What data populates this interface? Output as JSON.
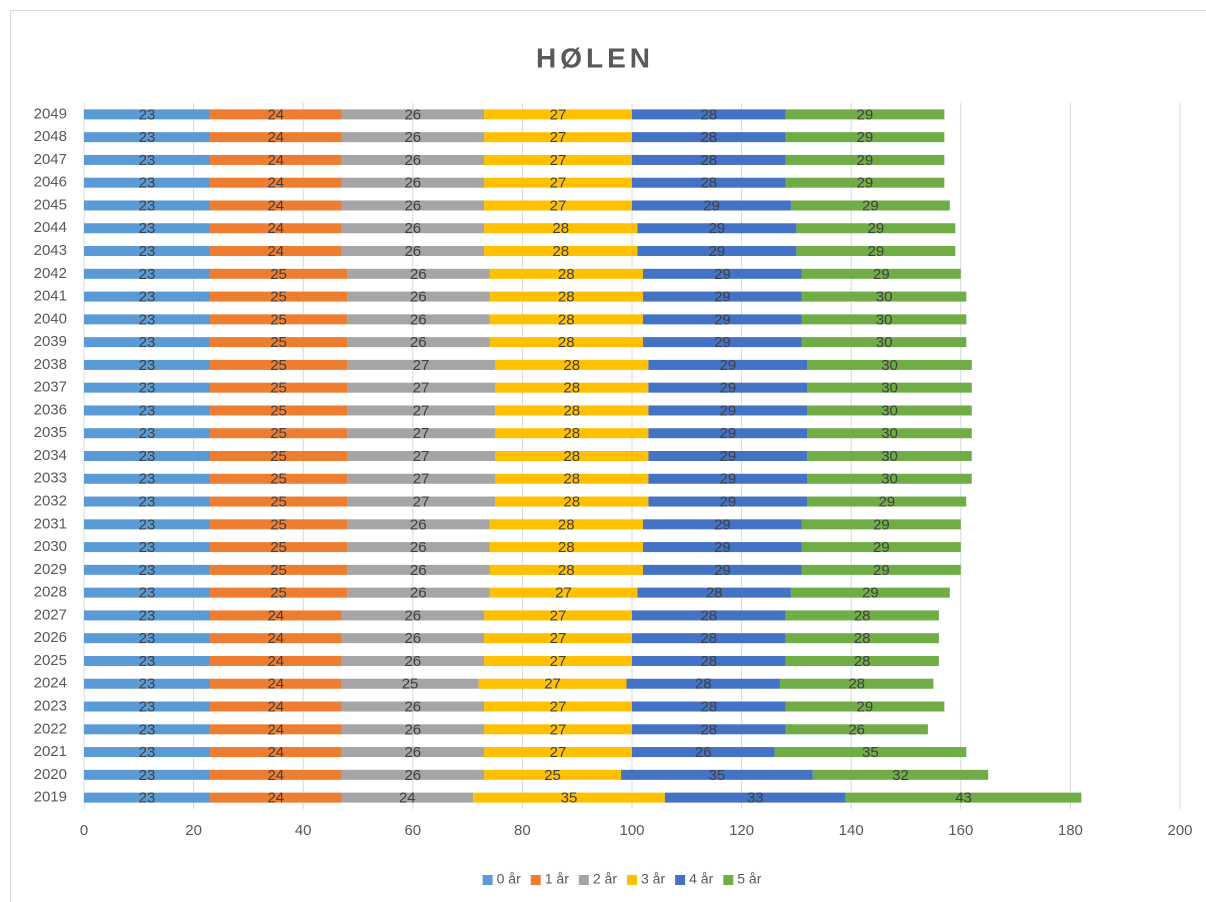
{
  "chart_data": {
    "type": "stacked_bar_horizontal",
    "title": "HØLEN",
    "categories": [
      "2019",
      "2020",
      "2021",
      "2022",
      "2023",
      "2024",
      "2025",
      "2026",
      "2027",
      "2028",
      "2029",
      "2030",
      "2031",
      "2032",
      "2033",
      "2034",
      "2035",
      "2036",
      "2037",
      "2038",
      "2039",
      "2040",
      "2041",
      "2042",
      "2043",
      "2044",
      "2045",
      "2046",
      "2047",
      "2048",
      "2049"
    ],
    "series": [
      {
        "name": "0 år",
        "color": "#5b9bd5",
        "values": [
          23,
          23,
          23,
          23,
          23,
          23,
          23,
          23,
          23,
          23,
          23,
          23,
          23,
          23,
          23,
          23,
          23,
          23,
          23,
          23,
          23,
          23,
          23,
          23,
          23,
          23,
          23,
          23,
          23,
          23,
          23
        ]
      },
      {
        "name": "1 år",
        "color": "#ed7d31",
        "values": [
          24,
          24,
          24,
          24,
          24,
          24,
          24,
          24,
          24,
          25,
          25,
          25,
          25,
          25,
          25,
          25,
          25,
          25,
          25,
          25,
          25,
          25,
          25,
          25,
          24,
          24,
          24,
          24,
          24,
          24,
          24
        ]
      },
      {
        "name": "2 år",
        "color": "#a5a5a5",
        "values": [
          24,
          26,
          26,
          26,
          26,
          25,
          26,
          26,
          26,
          26,
          26,
          26,
          26,
          27,
          27,
          27,
          27,
          27,
          27,
          27,
          26,
          26,
          26,
          26,
          26,
          26,
          26,
          26,
          26,
          26,
          26
        ]
      },
      {
        "name": "3 år",
        "color": "#ffc000",
        "values": [
          35,
          25,
          27,
          27,
          27,
          27,
          27,
          27,
          27,
          27,
          28,
          28,
          28,
          28,
          28,
          28,
          28,
          28,
          28,
          28,
          28,
          28,
          28,
          28,
          28,
          28,
          27,
          27,
          27,
          27,
          27
        ]
      },
      {
        "name": "4 år",
        "color": "#4472c4",
        "values": [
          33,
          35,
          26,
          28,
          28,
          28,
          28,
          28,
          28,
          28,
          29,
          29,
          29,
          29,
          29,
          29,
          29,
          29,
          29,
          29,
          29,
          29,
          29,
          29,
          29,
          29,
          29,
          28,
          28,
          28,
          28
        ]
      },
      {
        "name": "5 år",
        "color": "#70ad47",
        "values": [
          43,
          32,
          35,
          26,
          29,
          28,
          28,
          28,
          28,
          29,
          29,
          29,
          29,
          29,
          30,
          30,
          30,
          30,
          30,
          30,
          30,
          30,
          30,
          29,
          29,
          29,
          29,
          29,
          29,
          29,
          29
        ]
      }
    ],
    "xlim": [
      0,
      200
    ],
    "xticks": [
      0,
      20,
      40,
      60,
      80,
      100,
      120,
      140,
      160,
      180,
      200
    ],
    "grid": true,
    "legend": "bottom"
  }
}
